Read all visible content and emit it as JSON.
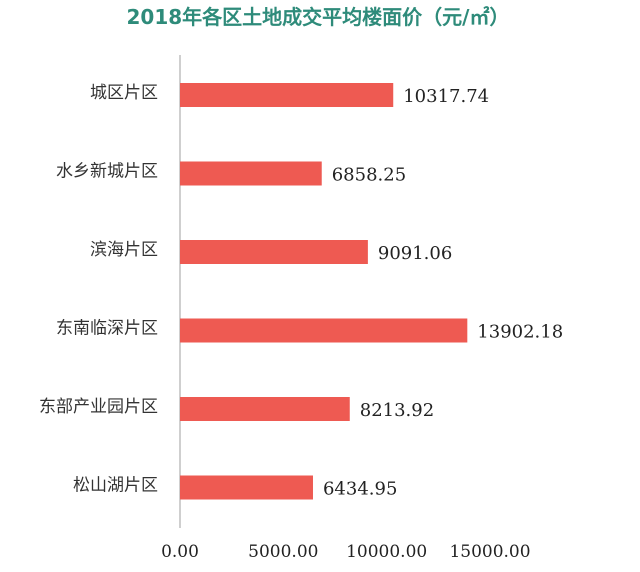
{
  "chart_data": {
    "type": "bar",
    "orientation": "horizontal",
    "title": "2018年各区土地成交平均楼面价（元/㎡）",
    "categories": [
      "城区片区",
      "水乡新城片区",
      "滨海片区",
      "东南临深片区",
      "东部产业园片区",
      "松山湖片区"
    ],
    "values": [
      10317.74,
      6858.25,
      9091.06,
      13902.18,
      8213.92,
      6434.95
    ],
    "value_labels": [
      "10317.74",
      "6858.25",
      "9091.06",
      "13902.18",
      "8213.92",
      "6434.95"
    ],
    "xlim": [
      0,
      15000
    ],
    "x_ticks": [
      0,
      5000,
      10000,
      15000
    ],
    "x_tick_labels": [
      "0.00",
      "5000.00",
      "10000.00",
      "15000.00"
    ],
    "grid": false,
    "legend": "none",
    "colors": {
      "bar": "#ee5a52",
      "title": "#2e8b7a",
      "axis": "#bfbfbf"
    }
  }
}
